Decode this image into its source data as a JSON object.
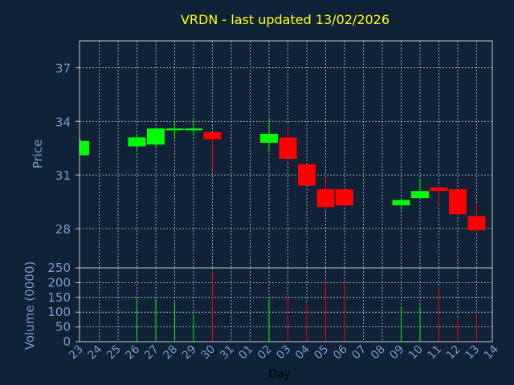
{
  "chart_data": [
    {
      "type": "candlestick",
      "title": "VRDN - last updated 13/02/2026",
      "ylabel": "Price",
      "ylim": [
        25.8,
        38.5
      ],
      "yticks": [
        28,
        31,
        34,
        37
      ],
      "x_tick_labels": [
        "23",
        "24",
        "25",
        "26",
        "27",
        "28",
        "29",
        "30",
        "31",
        "01",
        "02",
        "03",
        "04",
        "05",
        "06",
        "07",
        "08",
        "09",
        "10",
        "11",
        "12",
        "13",
        "14"
      ],
      "up_color": "#00ff00",
      "down_color": "#ff0000",
      "grid": true,
      "candles": [
        {
          "x": "23",
          "open": 32.1,
          "high": 33.0,
          "low": 32.1,
          "close": 32.9
        },
        {
          "x": "26",
          "open": 32.6,
          "high": 33.3,
          "low": 32.4,
          "close": 33.1
        },
        {
          "x": "27",
          "open": 32.7,
          "high": 33.6,
          "low": 32.6,
          "close": 33.6
        },
        {
          "x": "28",
          "open": 33.5,
          "high": 34.0,
          "low": 33.0,
          "close": 33.6
        },
        {
          "x": "29",
          "open": 33.5,
          "high": 34.2,
          "low": 33.2,
          "close": 33.6
        },
        {
          "x": "30",
          "open": 33.4,
          "high": 33.4,
          "low": 31.3,
          "close": 33.0
        },
        {
          "x": "02",
          "open": 32.8,
          "high": 34.2,
          "low": 32.3,
          "close": 33.3
        },
        {
          "x": "03",
          "open": 33.1,
          "high": 33.8,
          "low": 31.7,
          "close": 31.9
        },
        {
          "x": "04",
          "open": 31.6,
          "high": 31.6,
          "low": 30.4,
          "close": 30.4
        },
        {
          "x": "05",
          "open": 30.2,
          "high": 30.9,
          "low": 29.0,
          "close": 29.2
        },
        {
          "x": "06",
          "open": 30.2,
          "high": 30.2,
          "low": 29.2,
          "close": 29.3
        },
        {
          "x": "09",
          "open": 29.3,
          "high": 29.7,
          "low": 29.0,
          "close": 29.6
        },
        {
          "x": "10",
          "open": 29.7,
          "high": 30.8,
          "low": 29.7,
          "close": 30.1
        },
        {
          "x": "11",
          "open": 30.3,
          "high": 30.4,
          "low": 29.3,
          "close": 30.1
        },
        {
          "x": "12",
          "open": 30.2,
          "high": 30.2,
          "low": 28.7,
          "close": 28.8
        },
        {
          "x": "13",
          "open": 28.7,
          "high": 29.4,
          "low": 27.8,
          "close": 27.9
        }
      ]
    },
    {
      "type": "bar",
      "xlabel": "Day",
      "ylabel": "Volume (0000)",
      "ylim": [
        0,
        250
      ],
      "yticks": [
        0,
        50,
        100,
        150,
        200,
        250
      ],
      "grid": true,
      "categories": [
        "26",
        "27",
        "28",
        "29",
        "30",
        "02",
        "03",
        "04",
        "05",
        "06",
        "09",
        "10",
        "11",
        "12",
        "13"
      ],
      "values": [
        145,
        145,
        135,
        90,
        240,
        143,
        155,
        135,
        210,
        200,
        115,
        120,
        185,
        75,
        100
      ],
      "colors": [
        "#00ff00",
        "#00ff00",
        "#00ff00",
        "#00ff00",
        "#ff0000",
        "#00ff00",
        "#ff0000",
        "#ff0000",
        "#ff0000",
        "#ff0000",
        "#00ff00",
        "#00ff00",
        "#ff0000",
        "#ff0000",
        "#ff0000"
      ]
    }
  ]
}
